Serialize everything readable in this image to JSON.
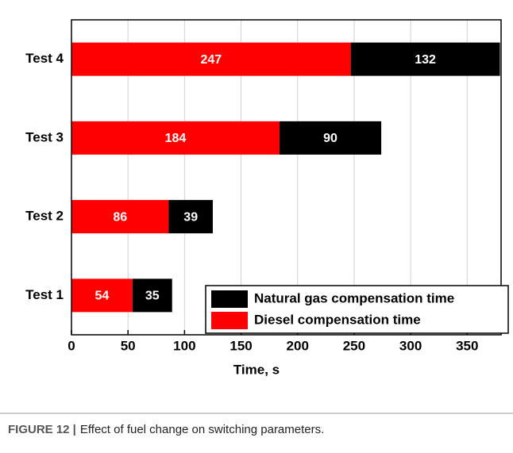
{
  "chart_data": {
    "type": "stacked_barh",
    "x_label": "Time, s",
    "categories": [
      "Test 1",
      "Test 2",
      "Test 3",
      "Test 4"
    ],
    "series": [
      {
        "name": "Diesel compensation time",
        "color": "#ff0000",
        "values": [
          54,
          86,
          184,
          247
        ]
      },
      {
        "name": "Natural gas compensation time",
        "color": "#000000",
        "values": [
          35,
          39,
          90,
          132
        ]
      }
    ],
    "xlim": [
      0,
      380
    ],
    "xticks": [
      0,
      50,
      100,
      150,
      200,
      250,
      300,
      350
    ],
    "grid": true
  },
  "caption": {
    "label": "FIGURE 12 |",
    "text": "Effect of fuel change on switching parameters."
  }
}
